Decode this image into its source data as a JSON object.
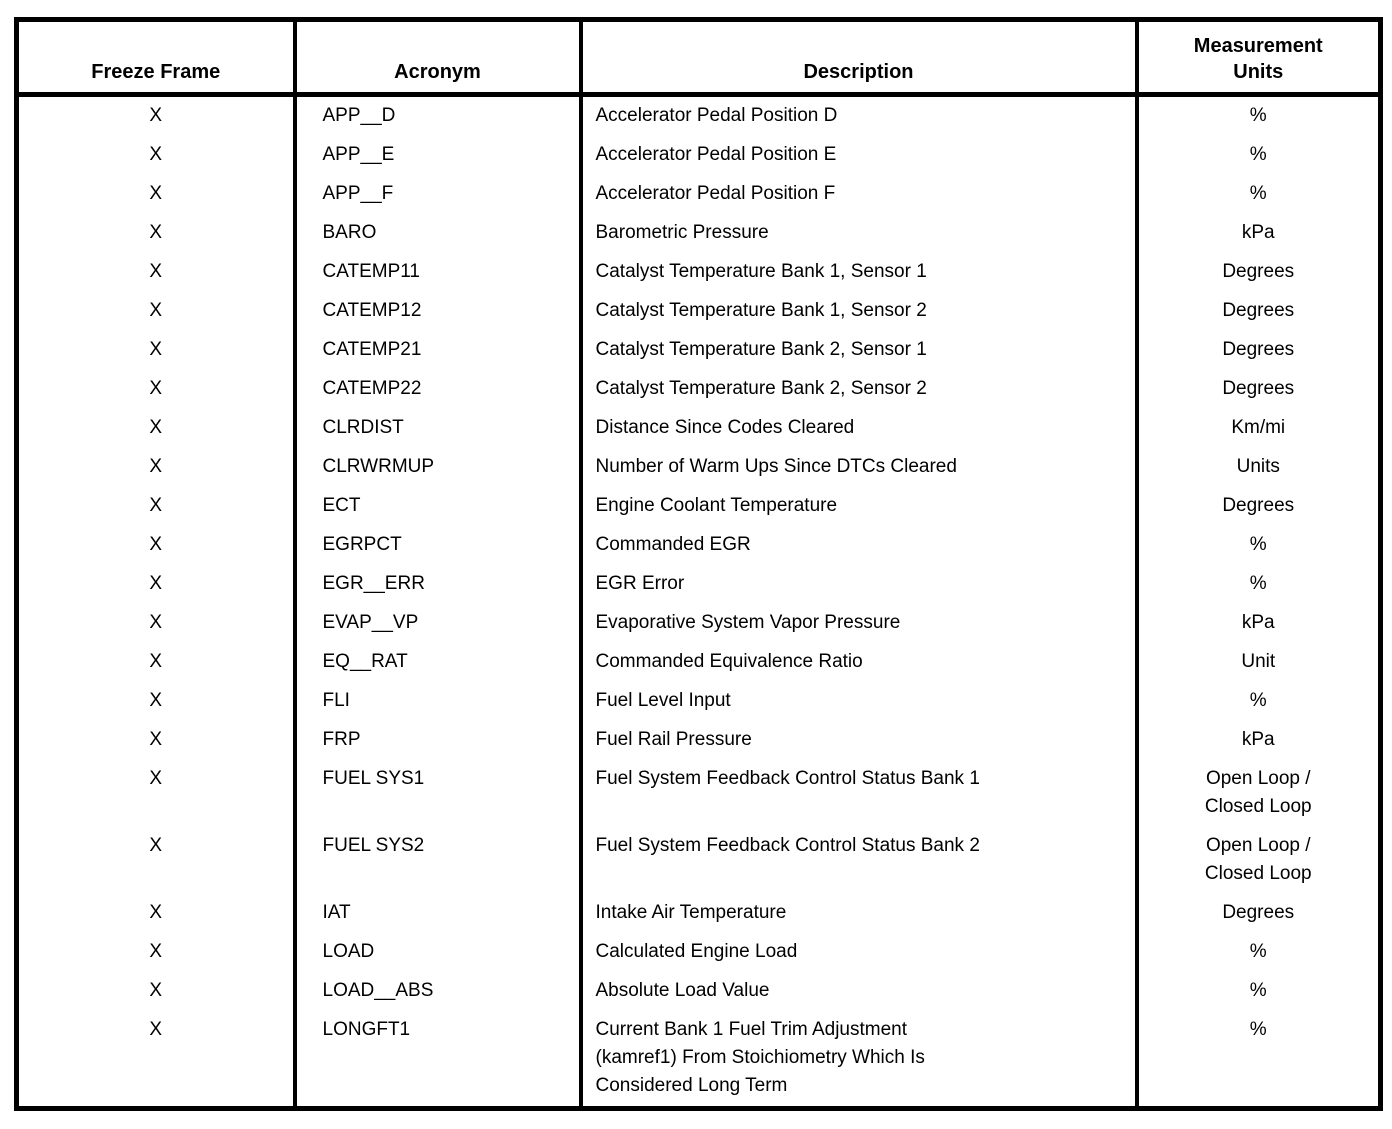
{
  "colors": {
    "text": "#000000",
    "background": "#ffffff",
    "border": "#000000"
  },
  "document": {
    "table": {
      "headers": {
        "freeze_frame": "Freeze Frame",
        "acronym": "Acronym",
        "description": "Description",
        "units": "Measurement\nUnits"
      },
      "rows": [
        {
          "freeze_frame": "X",
          "acronym": "APP__D",
          "description": "Accelerator Pedal Position D",
          "units": "%"
        },
        {
          "freeze_frame": "X",
          "acronym": "APP__E",
          "description": "Accelerator Pedal Position E",
          "units": "%"
        },
        {
          "freeze_frame": "X",
          "acronym": "APP__F",
          "description": "Accelerator Pedal Position F",
          "units": "%"
        },
        {
          "freeze_frame": "X",
          "acronym": "BARO",
          "description": "Barometric Pressure",
          "units": "kPa"
        },
        {
          "freeze_frame": "X",
          "acronym": "CATEMP11",
          "description": "Catalyst Temperature Bank 1, Sensor 1",
          "units": "Degrees"
        },
        {
          "freeze_frame": "X",
          "acronym": "CATEMP12",
          "description": "Catalyst Temperature Bank 1, Sensor 2",
          "units": "Degrees"
        },
        {
          "freeze_frame": "X",
          "acronym": "CATEMP21",
          "description": "Catalyst Temperature Bank 2, Sensor 1",
          "units": "Degrees"
        },
        {
          "freeze_frame": "X",
          "acronym": "CATEMP22",
          "description": "Catalyst Temperature Bank 2, Sensor 2",
          "units": "Degrees"
        },
        {
          "freeze_frame": "X",
          "acronym": "CLRDIST",
          "description": "Distance Since Codes Cleared",
          "units": "Km/mi"
        },
        {
          "freeze_frame": "X",
          "acronym": "CLRWRMUP",
          "description": "Number of Warm Ups Since DTCs Cleared",
          "units": "Units"
        },
        {
          "freeze_frame": "X",
          "acronym": "ECT",
          "description": "Engine Coolant Temperature",
          "units": "Degrees"
        },
        {
          "freeze_frame": "X",
          "acronym": "EGRPCT",
          "description": "Commanded EGR",
          "units": "%"
        },
        {
          "freeze_frame": "X",
          "acronym": "EGR__ERR",
          "description": "EGR Error",
          "units": "%"
        },
        {
          "freeze_frame": "X",
          "acronym": "EVAP__VP",
          "description": "Evaporative System Vapor Pressure",
          "units": "kPa"
        },
        {
          "freeze_frame": "X",
          "acronym": "EQ__RAT",
          "description": "Commanded Equivalence Ratio",
          "units": "Unit"
        },
        {
          "freeze_frame": "X",
          "acronym": "FLI",
          "description": "Fuel Level Input",
          "units": "%"
        },
        {
          "freeze_frame": "X",
          "acronym": "FRP",
          "description": "Fuel Rail Pressure",
          "units": "kPa"
        },
        {
          "freeze_frame": "X",
          "acronym": "FUEL SYS1",
          "description": "Fuel System Feedback Control Status Bank 1",
          "units": "Open Loop /\nClosed Loop"
        },
        {
          "freeze_frame": "X",
          "acronym": "FUEL SYS2",
          "description": "Fuel System Feedback Control Status Bank 2",
          "units": "Open Loop /\nClosed Loop"
        },
        {
          "freeze_frame": "X",
          "acronym": "IAT",
          "description": "Intake Air Temperature",
          "units": "Degrees"
        },
        {
          "freeze_frame": "X",
          "acronym": "LOAD",
          "description": "Calculated Engine Load",
          "units": "%"
        },
        {
          "freeze_frame": "X",
          "acronym": "LOAD__ABS",
          "description": "Absolute Load Value",
          "units": "%"
        },
        {
          "freeze_frame": "X",
          "acronym": "LONGFT1",
          "description": "Current Bank 1 Fuel Trim Adjustment\n(kamref1) From Stoichiometry Which Is\nConsidered Long Term",
          "units": "%"
        }
      ]
    }
  }
}
